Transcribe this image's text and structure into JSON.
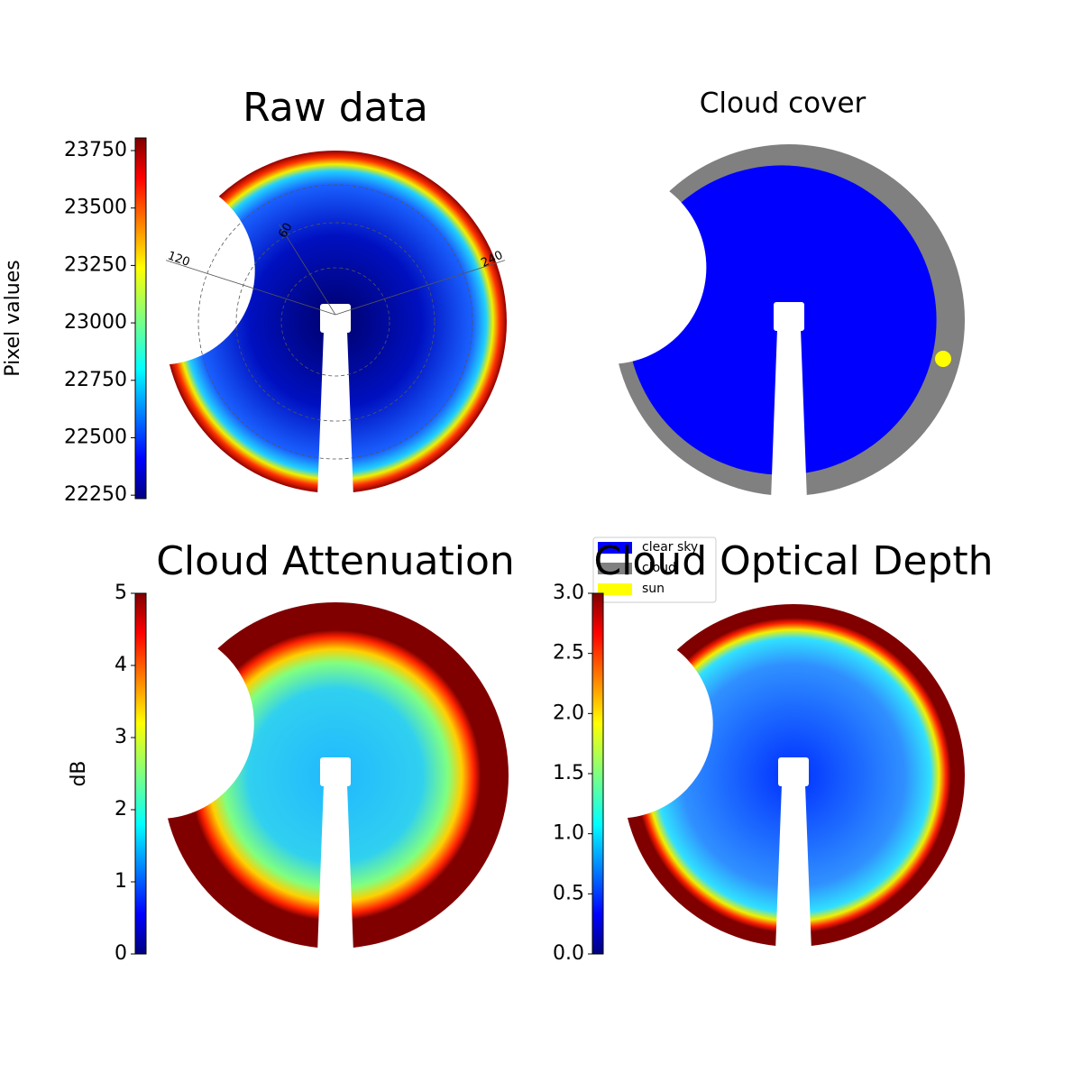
{
  "chart_data": [
    {
      "type": "image",
      "title": "Raw data",
      "colorbar": {
        "label": "Pixel values",
        "lim": [
          22235,
          23805
        ],
        "ticks": [
          22250,
          22500,
          22750,
          23000,
          23250,
          23500,
          23750
        ]
      },
      "polar_labels": [
        "120",
        "60",
        "240"
      ]
    },
    {
      "type": "image",
      "title": "Cloud cover",
      "legend": [
        {
          "name": "clear sky",
          "color": "#0000ff"
        },
        {
          "name": "cloud",
          "color": "#808080"
        },
        {
          "name": "sun",
          "color": "#ffff00"
        }
      ]
    },
    {
      "type": "image",
      "title": "Cloud Attenuation",
      "colorbar": {
        "label": "dB",
        "lim": [
          0,
          5
        ],
        "ticks": [
          0,
          1,
          2,
          3,
          4,
          5
        ]
      }
    },
    {
      "type": "image",
      "title": "Cloud Optical Depth",
      "colorbar": {
        "lim": [
          0,
          3
        ],
        "ticks": [
          {
            "value": 0,
            "label": "0.0"
          },
          0.5,
          {
            "value": 1,
            "label": "1.0"
          },
          1.5,
          {
            "value": 2,
            "label": "2.0"
          },
          2.5,
          {
            "value": 3,
            "label": "3.0"
          }
        ]
      }
    }
  ]
}
